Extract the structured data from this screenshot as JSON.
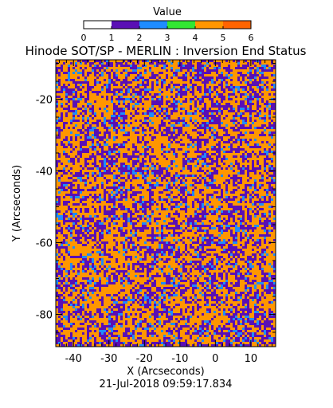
{
  "chart_data": {
    "type": "heatmap",
    "title": "Hinode SOT/SP - MERLIN : Inversion End Status",
    "xlabel": "X (Arcseconds)",
    "ylabel": "Y (Arcseconds)",
    "timestamp": "21-Jul-2018 09:59:17.834",
    "xlim": [
      -45,
      17
    ],
    "ylim": [
      -89,
      -9
    ],
    "x_ticks": [
      -40,
      -30,
      -20,
      -10,
      0,
      10
    ],
    "y_ticks": [
      -20,
      -40,
      -60,
      -80
    ],
    "colorbar": {
      "label": "Value",
      "range": [
        0,
        6
      ],
      "ticks": [
        0,
        1,
        2,
        3,
        4,
        5,
        6
      ],
      "colors": [
        "#ffffff",
        "#5a0fb4",
        "#1e8cff",
        "#32e632",
        "#ff9600",
        "#ff6400",
        "#ff1e1e"
      ]
    },
    "value_distribution": {
      "1": 0.38,
      "2": 0.08,
      "4": 0.54
    }
  }
}
